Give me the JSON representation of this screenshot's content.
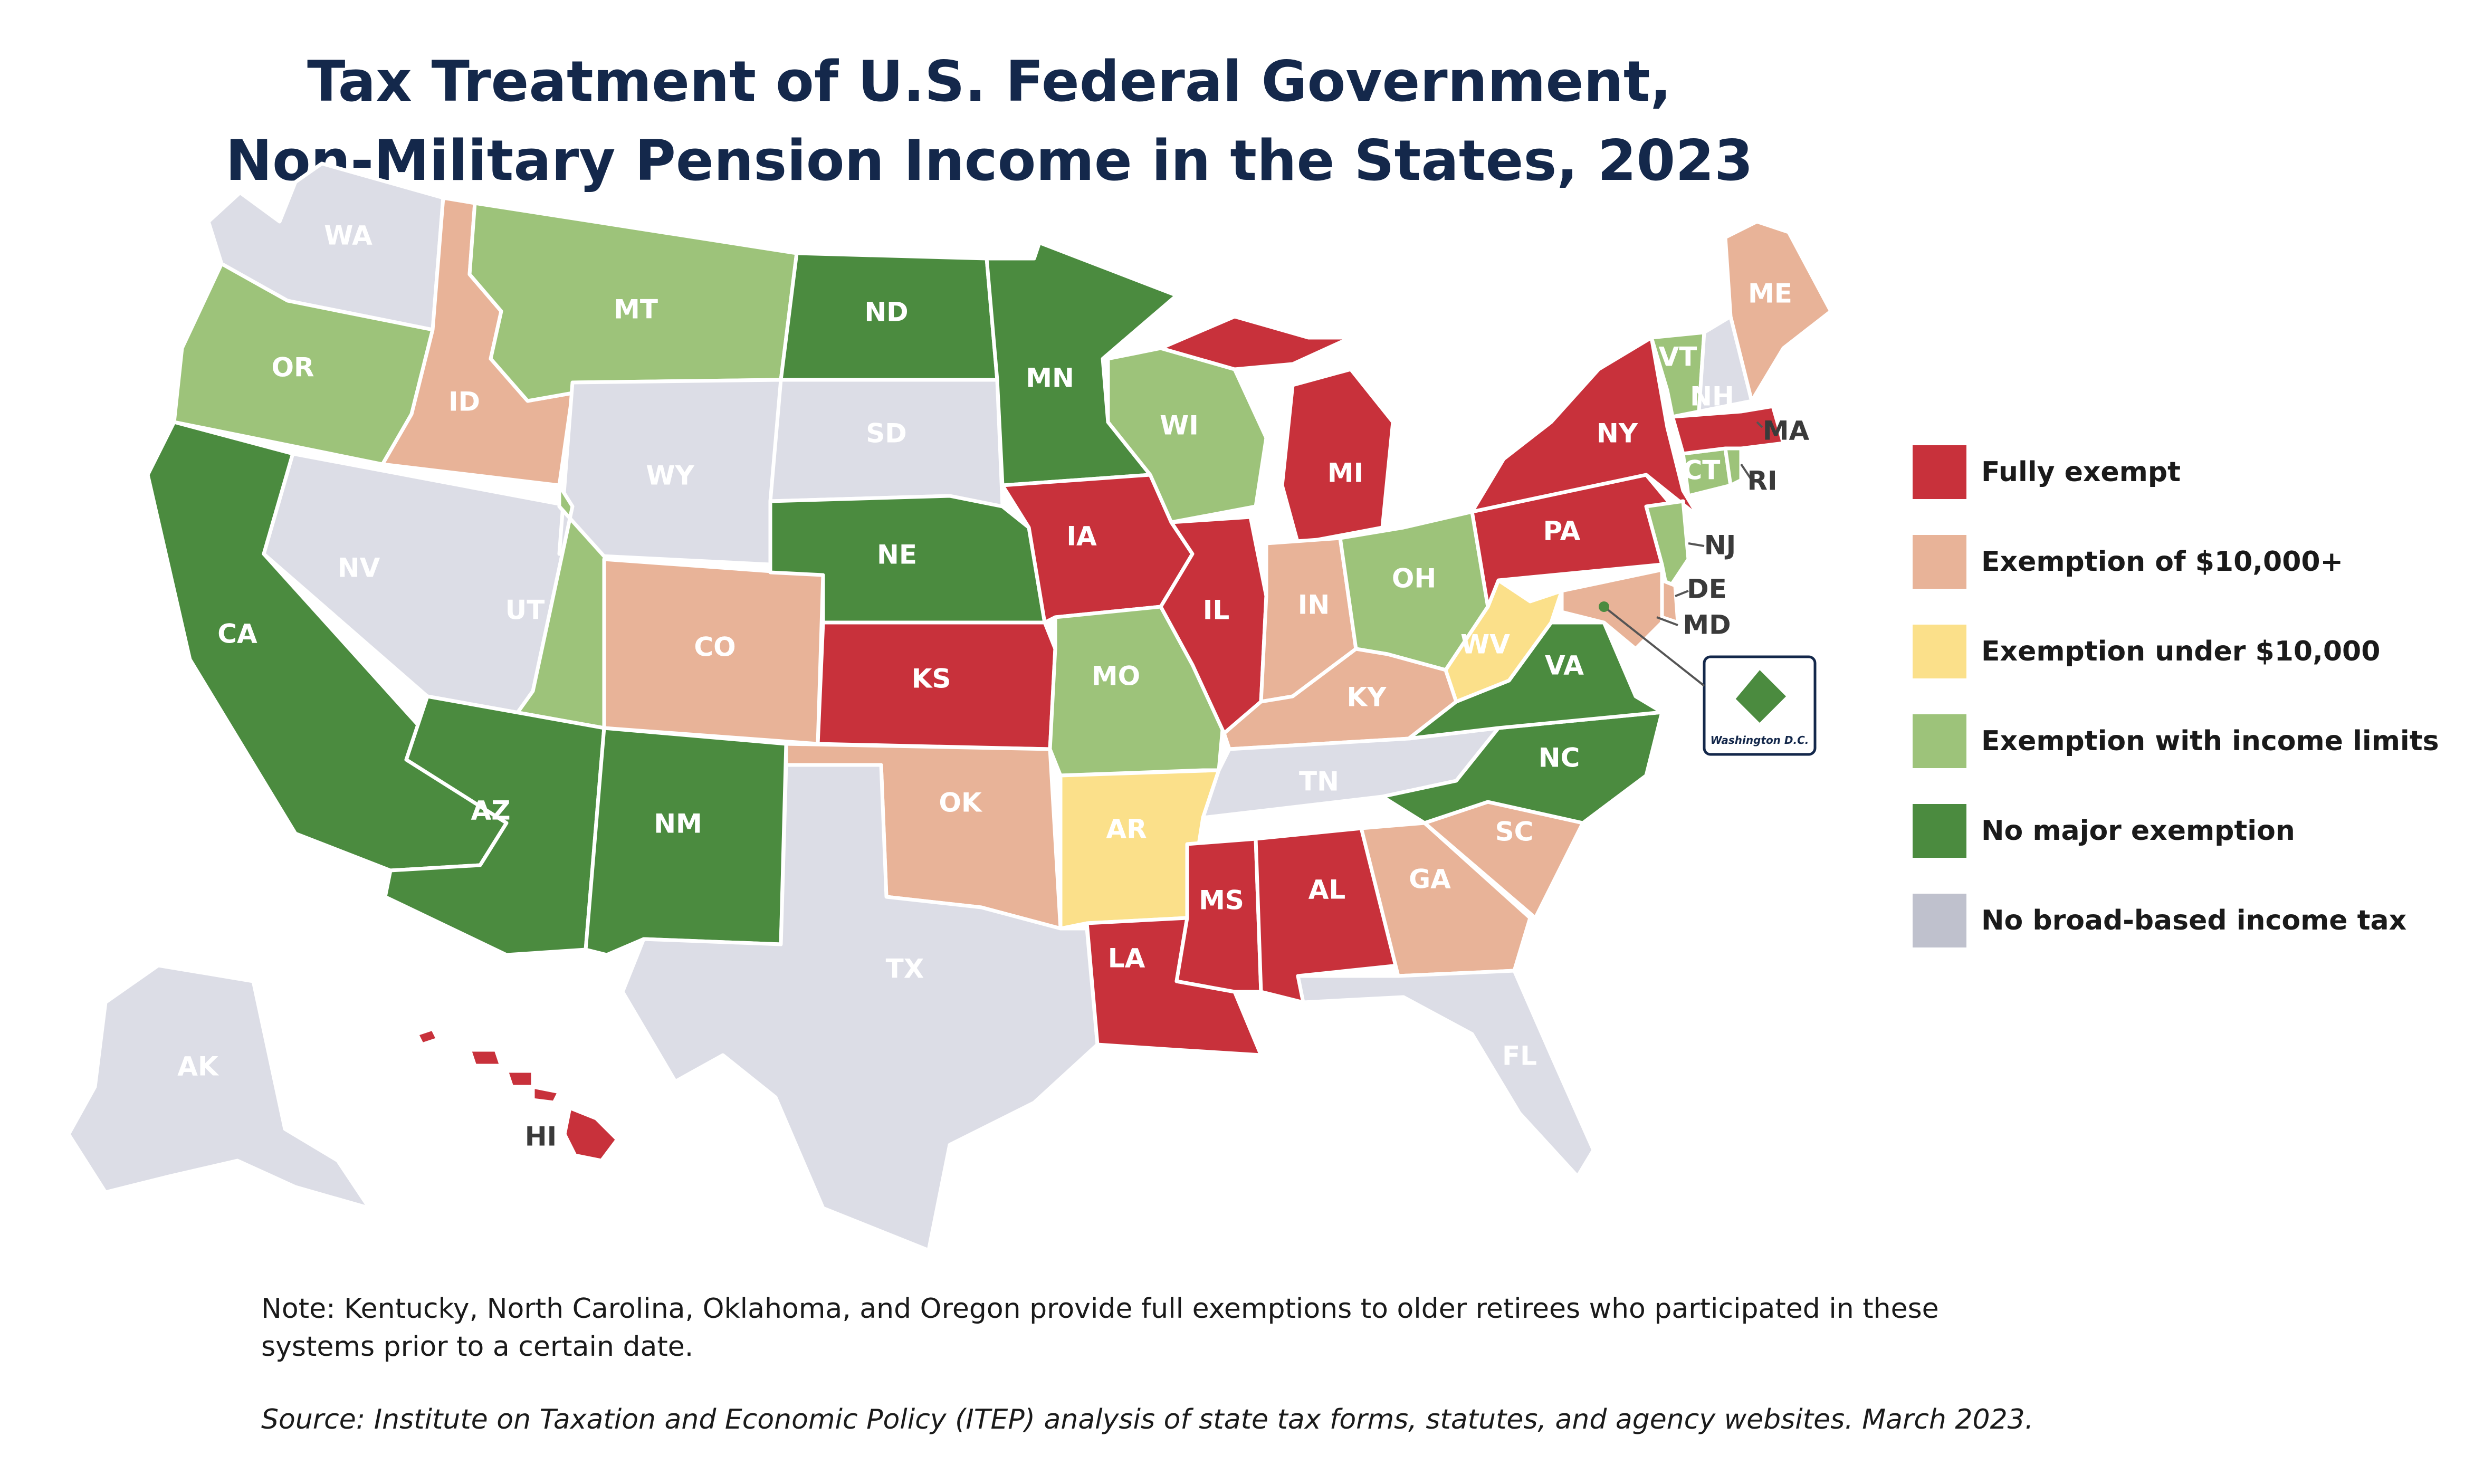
{
  "title": {
    "line1": "Tax Treatment of U.S. Federal Government,",
    "line2": "Non-Military Pension Income in the States, 2023"
  },
  "categories": {
    "fully_exempt": {
      "label": "Fully exempt",
      "color": "#c8313b"
    },
    "exemption_10000_plus": {
      "label": "Exemption of $10,000+",
      "color": "#e8b398"
    },
    "exemption_under_10000": {
      "label": "Exemption under $10,000",
      "color": "#fbe08a"
    },
    "exemption_income_limits": {
      "label": "Exemption with income limits",
      "color": "#9dc37a"
    },
    "no_major_exemption": {
      "label": "No major exemption",
      "color": "#4b8b3f"
    },
    "no_income_tax": {
      "label": "No broad-based income tax",
      "color": "#dcdde6"
    }
  },
  "legend_order": [
    "fully_exempt",
    "exemption_10000_plus",
    "exemption_under_10000",
    "exemption_income_limits",
    "no_major_exemption",
    "no_income_tax"
  ],
  "legend_swatch_colors": [
    "#c8313b",
    "#e8b398",
    "#fbe08a",
    "#9dc37a",
    "#4b8b3f",
    "#bfc1cd"
  ],
  "states": {
    "WA": "no_income_tax",
    "OR": "exemption_income_limits",
    "CA": "no_major_exemption",
    "ID": "exemption_10000_plus",
    "NV": "no_income_tax",
    "MT": "exemption_income_limits",
    "WY": "no_income_tax",
    "UT": "exemption_income_limits",
    "AZ": "no_major_exemption",
    "CO": "exemption_10000_plus",
    "NM": "no_major_exemption",
    "ND": "no_major_exemption",
    "SD": "no_income_tax",
    "NE": "no_major_exemption",
    "KS": "fully_exempt",
    "OK": "exemption_10000_plus",
    "TX": "no_income_tax",
    "MN": "no_major_exemption",
    "IA": "fully_exempt",
    "MO": "exemption_income_limits",
    "AR": "exemption_under_10000",
    "LA": "fully_exempt",
    "WI": "exemption_income_limits",
    "IL": "fully_exempt",
    "MS": "fully_exempt",
    "MI": "fully_exempt",
    "IN": "exemption_10000_plus",
    "KY": "exemption_10000_plus",
    "TN": "no_income_tax",
    "AL": "fully_exempt",
    "OH": "exemption_income_limits",
    "GA": "exemption_10000_plus",
    "FL": "no_income_tax",
    "SC": "exemption_10000_plus",
    "NC": "no_major_exemption",
    "VA": "no_major_exemption",
    "WV": "exemption_under_10000",
    "PA": "fully_exempt",
    "NY": "fully_exempt",
    "VT": "exemption_income_limits",
    "NH": "no_income_tax",
    "ME": "exemption_10000_plus",
    "MA": "fully_exempt",
    "RI": "exemption_income_limits",
    "CT": "exemption_income_limits",
    "NJ": "exemption_income_limits",
    "DE": "exemption_10000_plus",
    "MD": "exemption_10000_plus",
    "DC": "no_major_exemption",
    "AK": "no_income_tax",
    "HI": "fully_exempt"
  },
  "dc_label": "Washington D.C.",
  "note": "Note: Kentucky, North Carolina, Oklahoma, and Oregon provide full exemptions to older retirees who participated in these systems prior to a certain date.",
  "source": "Source: Institute on Taxation and Economic Policy (ITEP) analysis of state tax forms, statutes, and agency websites. March 2023."
}
